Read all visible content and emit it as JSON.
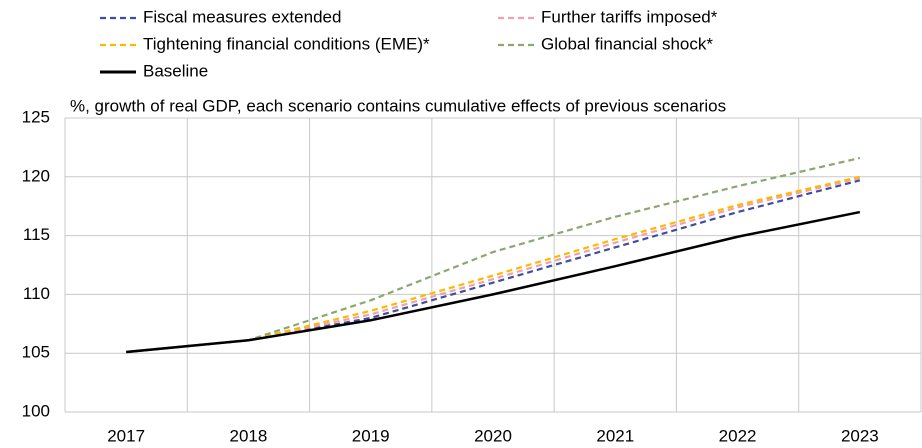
{
  "chart_data": {
    "type": "line",
    "subtitle": "%, growth of real GDP, each scenario contains cumulative effects of previous scenarios",
    "categories": [
      "2017",
      "2018",
      "2019",
      "2020",
      "2021",
      "2022",
      "2023"
    ],
    "series": [
      {
        "name": "Fiscal measures extended",
        "color": "#3f4ea0",
        "style": "dashed",
        "values": [
          105.1,
          106.1,
          108.0,
          111.0,
          114.0,
          117.0,
          119.7
        ]
      },
      {
        "name": "Further tariffs imposed*",
        "color": "#f4a0a8",
        "style": "dashed",
        "values": [
          105.1,
          106.1,
          108.3,
          111.3,
          114.4,
          117.4,
          119.9
        ]
      },
      {
        "name": "Tightening financial conditions (EME)*",
        "color": "#ffb800",
        "style": "dashed",
        "values": [
          105.1,
          106.1,
          108.6,
          111.6,
          114.7,
          117.6,
          120.0
        ]
      },
      {
        "name": "Global financial shock*",
        "color": "#8aa870",
        "style": "dashed",
        "values": [
          105.1,
          106.1,
          109.5,
          113.6,
          116.6,
          119.2,
          121.6
        ]
      },
      {
        "name": "Baseline",
        "color": "#000000",
        "style": "solid",
        "values": [
          105.1,
          106.1,
          107.8,
          110.0,
          112.4,
          114.9,
          117.0
        ]
      }
    ],
    "ylim": [
      100,
      125
    ],
    "yticks": [
      100,
      105,
      110,
      115,
      120,
      125
    ],
    "grid": true,
    "legend": "top"
  }
}
